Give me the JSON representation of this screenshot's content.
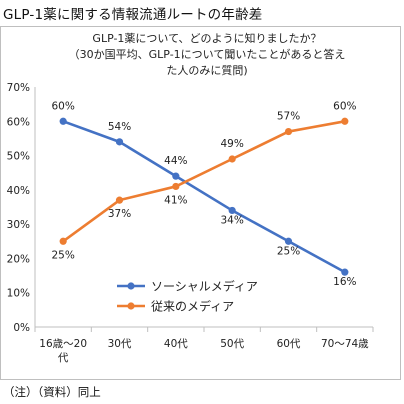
{
  "page": {
    "title": "GLP-1薬に関する情報流通ルートの年齢差",
    "note": "（注）（資料）同上"
  },
  "chart_data": {
    "type": "line",
    "title_lines": [
      "GLP-1薬について、どのように知りましたか？",
      "（30か国平均、GLP-1について聞いたことがあると答え",
      "た人のみに質問)"
    ],
    "categories": [
      [
        "16歳～20",
        "代"
      ],
      [
        "30代"
      ],
      [
        "40代"
      ],
      [
        "50代"
      ],
      [
        "60代"
      ],
      [
        "70～74歳"
      ]
    ],
    "series": [
      {
        "name": "ソーシャルメディア",
        "color": "#4472C4",
        "values": [
          60,
          54,
          44,
          34,
          25,
          16
        ],
        "labels": [
          "60%",
          "54%",
          "44%",
          "34%",
          "25%",
          "16%"
        ]
      },
      {
        "name": "従来のメディア",
        "color": "#ED7D31",
        "values": [
          25,
          37,
          41,
          49,
          57,
          60
        ],
        "labels": [
          "25%",
          "37%",
          "41%",
          "49%",
          "57%",
          "60%"
        ]
      }
    ],
    "ylim": [
      0,
      70
    ],
    "yticks": [
      0,
      10,
      20,
      30,
      40,
      50,
      60,
      70
    ],
    "ytick_labels": [
      "0%",
      "10%",
      "20%",
      "30%",
      "40%",
      "50%",
      "60%",
      "70%"
    ],
    "grid": false,
    "legend_position": "inside-lower-center",
    "xlabel": "",
    "ylabel": ""
  }
}
